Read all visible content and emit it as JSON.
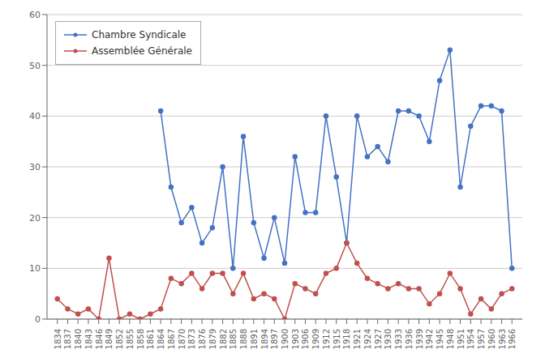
{
  "chart_data": {
    "type": "line",
    "x": [
      1834,
      1837,
      1840,
      1843,
      1846,
      1849,
      1852,
      1855,
      1858,
      1861,
      1864,
      1867,
      1870,
      1873,
      1876,
      1879,
      1882,
      1885,
      1888,
      1891,
      1894,
      1897,
      1900,
      1903,
      1906,
      1909,
      1912,
      1915,
      1918,
      1921,
      1924,
      1927,
      1930,
      1933,
      1936,
      1939,
      1942,
      1945,
      1948,
      1951,
      1954,
      1957,
      1960,
      1963,
      1966
    ],
    "series": [
      {
        "name": "Chambre Syndicale",
        "color": "#4472C4",
        "marker": "circle",
        "values": [
          null,
          null,
          null,
          null,
          null,
          null,
          null,
          null,
          null,
          null,
          41,
          26,
          19,
          22,
          15,
          18,
          30,
          10,
          36,
          19,
          12,
          20,
          11,
          32,
          21,
          21,
          40,
          28,
          15,
          40,
          32,
          34,
          31,
          41,
          41,
          40,
          35,
          47,
          53,
          26,
          38,
          42,
          42,
          41,
          10
        ]
      },
      {
        "name": "Assemblée Générale",
        "color": "#C0504D",
        "marker": "circle",
        "values": [
          4,
          2,
          1,
          2,
          0,
          12,
          0,
          1,
          0,
          1,
          2,
          8,
          7,
          9,
          6,
          9,
          9,
          5,
          9,
          4,
          5,
          4,
          0,
          7,
          6,
          5,
          9,
          10,
          15,
          11,
          8,
          7,
          6,
          7,
          6,
          6,
          3,
          5,
          9,
          6,
          1,
          4,
          2,
          5,
          6
        ]
      }
    ],
    "xlim": [
      1831,
      1969
    ],
    "xticks": [
      1834,
      1837,
      1840,
      1843,
      1846,
      1849,
      1852,
      1855,
      1858,
      1861,
      1864,
      1867,
      1870,
      1873,
      1876,
      1879,
      1882,
      1885,
      1888,
      1891,
      1894,
      1897,
      1900,
      1903,
      1906,
      1909,
      1912,
      1915,
      1918,
      1921,
      1924,
      1927,
      1930,
      1933,
      1936,
      1939,
      1942,
      1945,
      1948,
      1951,
      1954,
      1957,
      1960,
      1963,
      1966
    ],
    "ylim": [
      0,
      60
    ],
    "yticks": [
      0,
      10,
      20,
      30,
      40,
      50,
      60
    ],
    "grid": "y",
    "legend": "upper left"
  }
}
